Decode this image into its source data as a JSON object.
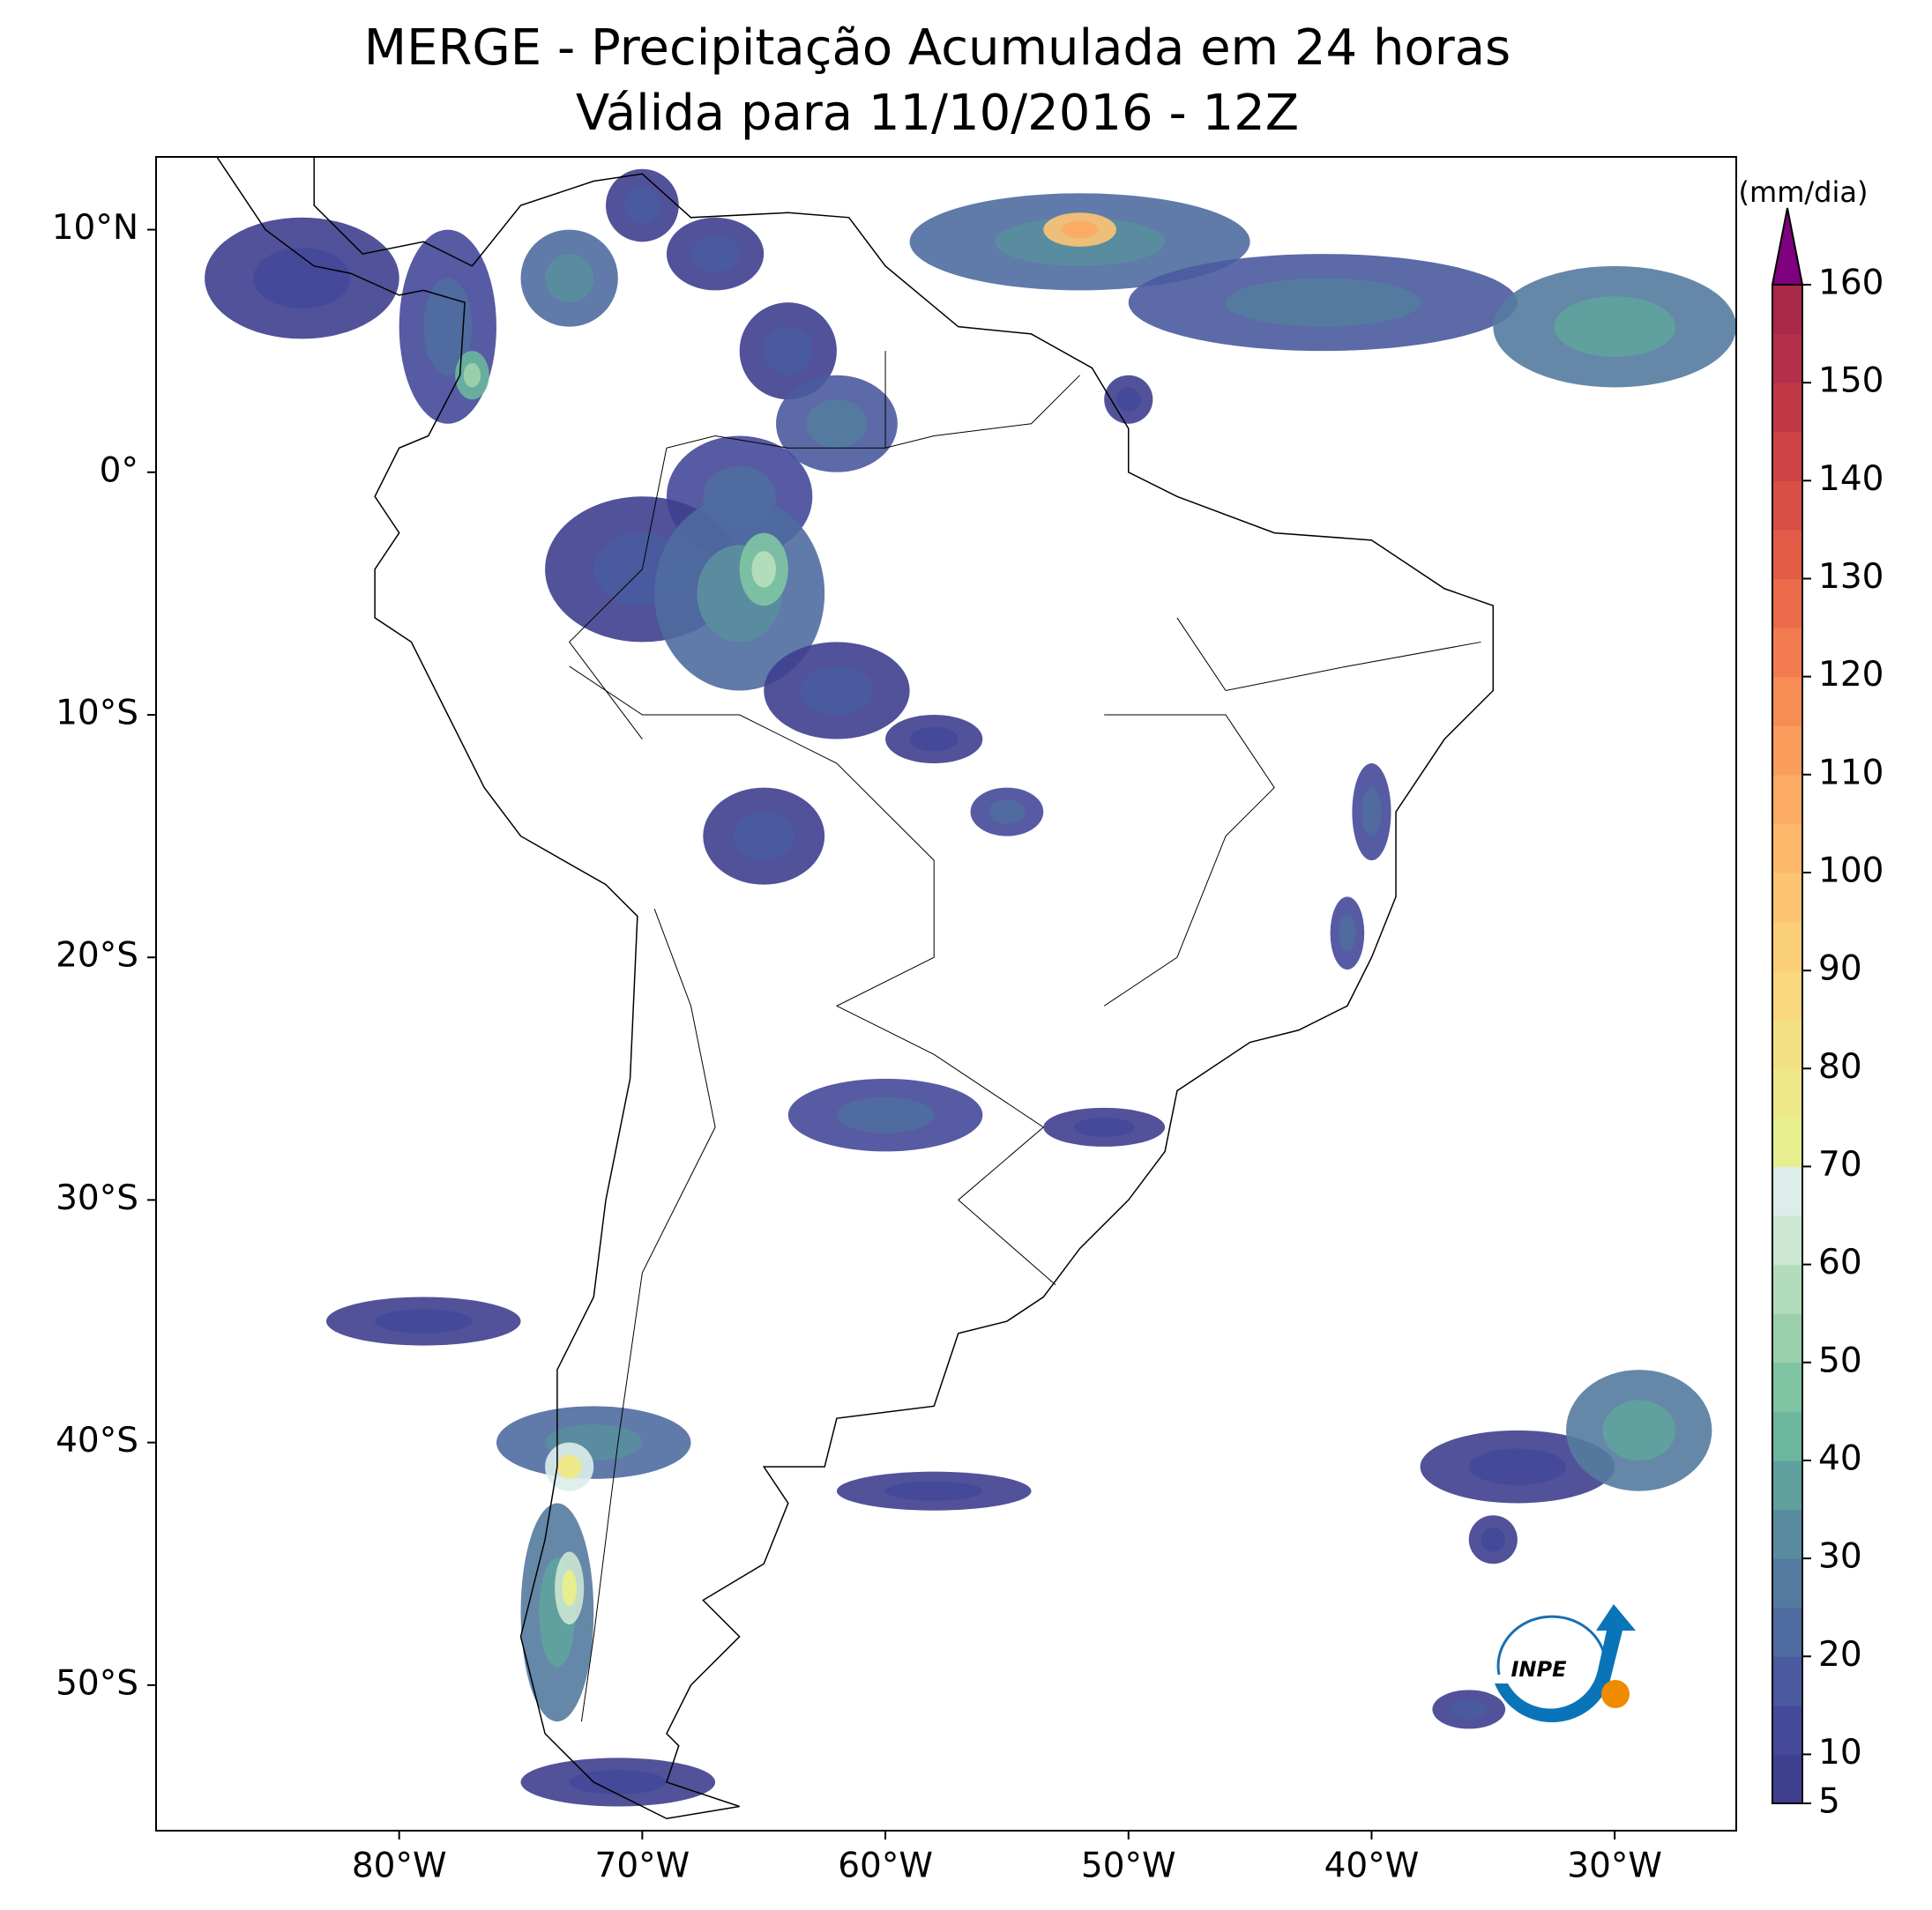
{
  "title": "MERGE - Precipitação Acumulada em 24 horas",
  "subtitle": "Válida para 11/10/2016 - 12Z",
  "map": {
    "xlim": [
      -90,
      -25
    ],
    "ylim": [
      -56,
      13
    ],
    "xticks": [
      {
        "value": -80,
        "label": "80°W"
      },
      {
        "value": -70,
        "label": "70°W"
      },
      {
        "value": -60,
        "label": "60°W"
      },
      {
        "value": -50,
        "label": "50°W"
      },
      {
        "value": -40,
        "label": "40°W"
      },
      {
        "value": -30,
        "label": "30°W"
      }
    ],
    "yticks": [
      {
        "value": 10,
        "label": "10°N"
      },
      {
        "value": 0,
        "label": "0°"
      },
      {
        "value": -10,
        "label": "10°S"
      },
      {
        "value": -20,
        "label": "20°S"
      },
      {
        "value": -30,
        "label": "30°S"
      },
      {
        "value": -40,
        "label": "40°S"
      },
      {
        "value": -50,
        "label": "50°S"
      }
    ]
  },
  "colorbar": {
    "label": "(mm/dia)",
    "lim": [
      5,
      160
    ],
    "ticks": [
      5,
      10,
      20,
      30,
      40,
      50,
      60,
      70,
      80,
      90,
      100,
      110,
      120,
      130,
      140,
      150,
      160
    ],
    "colors": [
      "#3e3f8e",
      "#45499a",
      "#4a5a9e",
      "#4f6ba0",
      "#547b9f",
      "#5a8c9f",
      "#60a09e",
      "#6cb69e",
      "#80c5a3",
      "#99d0ab",
      "#b3dcbb",
      "#cbe6d2",
      "#dcedea",
      "#e6ee8d",
      "#efe88a",
      "#f4e084",
      "#f8d77e",
      "#fbce78",
      "#fdc473",
      "#fdb86c",
      "#fcab64",
      "#fa9c5c",
      "#f78d55",
      "#f27c4f",
      "#eb6b4a",
      "#e25c47",
      "#d84f46",
      "#cd4346",
      "#c13847",
      "#b42f48",
      "#a8284a"
    ],
    "extend_color": "#7f007f"
  },
  "logo": {
    "text": "INPE"
  }
}
